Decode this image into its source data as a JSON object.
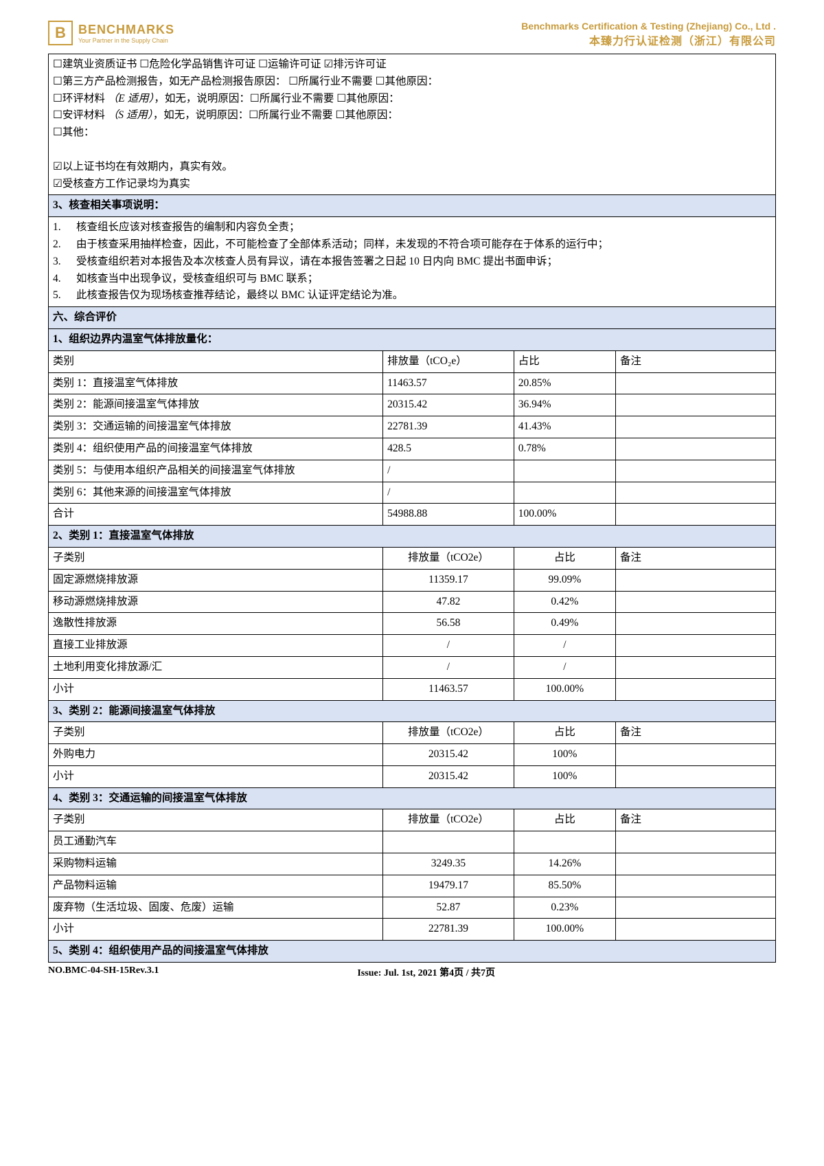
{
  "header": {
    "logo_letter": "B",
    "brand": "BENCHMARKS",
    "tagline": "Your Partner in the Supply Chain",
    "company_en": "Benchmarks Certification & Testing (Zhejiang) Co., Ltd .",
    "company_cn": "本臻力行认证检测（浙江）有限公司"
  },
  "certs_box": {
    "lines": [
      [
        {
          "c": "u",
          "t": "建筑业资质证书"
        },
        {
          "c": "u",
          "t": "危险化学品销售许可证"
        },
        {
          "c": "u",
          "t": "运输许可证"
        },
        {
          "c": "c",
          "t": "排污许可证"
        }
      ],
      [
        {
          "c": "u",
          "t": "第三方产品检测报告，如无产品检测报告原因："
        },
        {
          "c": "u",
          "t": "所属行业不需要"
        },
        {
          "c": "u",
          "t": "其他原因："
        }
      ],
      [
        {
          "c": "u",
          "t": "环评材料"
        },
        {
          "it": "（E 适用）"
        },
        {
          "plain": "，如无，说明原因："
        },
        {
          "c": "u",
          "t": "所属行业不需要"
        },
        {
          "c": "u",
          "t": "其他原因："
        }
      ],
      [
        {
          "c": "u",
          "t": "安评材料"
        },
        {
          "it": "（S 适用）"
        },
        {
          "plain": "，如无，说明原因："
        },
        {
          "c": "u",
          "t": "所属行业不需要"
        },
        {
          "c": "u",
          "t": "其他原因："
        }
      ],
      [
        {
          "c": "u",
          "t": "其他："
        }
      ]
    ],
    "footer_lines": [
      {
        "c": "c",
        "t": "以上证书均在有效期内，真实有效。"
      },
      {
        "c": "c",
        "t": "受核查方工作记录均为真实"
      }
    ]
  },
  "sec3_title": "3、核查相关事项说明：",
  "sec3_items": [
    {
      "n": "1.",
      "t": "核查组长应该对核查报告的编制和内容负全责；"
    },
    {
      "n": "2.",
      "t": "由于核查采用抽样检查，因此，不可能检查了全部体系活动；同样，未发现的不符合项可能存在于体系的运行中；"
    },
    {
      "n": "3.",
      "t": "受核查组织若对本报告及本次核查人员有异议，请在本报告签署之日起 10 日内向 BMC 提出书面申诉；"
    },
    {
      "n": "4.",
      "t": "如核查当中出现争议，受核查组织可与 BMC 联系；"
    },
    {
      "n": "5.",
      "t": "此核查报告仅为现场核查推荐结论，最终以 BMC 认证评定结论为准。"
    }
  ],
  "sec6_title": "六、综合评价",
  "emissions": {
    "title": "1、组织边界内温室气体排放量化：",
    "col_category": "类别",
    "col_emission": "排放量（tCO₂e）",
    "col_ratio": "占比",
    "col_note": "备注",
    "rows": [
      {
        "cat": "类别 1：直接温室气体排放",
        "e": "11463.57",
        "r": "20.85%",
        "n": ""
      },
      {
        "cat": "类别 2：能源间接温室气体排放",
        "e": "20315.42",
        "r": "36.94%",
        "n": ""
      },
      {
        "cat": "类别 3：交通运输的间接温室气体排放",
        "e": "22781.39",
        "r": "41.43%",
        "n": ""
      },
      {
        "cat": "类别 4：组织使用产品的间接温室气体排放",
        "e": "428.5",
        "r": "0.78%",
        "n": ""
      },
      {
        "cat": "类别 5：与使用本组织产品相关的间接温室气体排放",
        "e": "/",
        "r": "",
        "n": ""
      },
      {
        "cat": "类别 6：其他来源的间接温室气体排放",
        "e": "/",
        "r": "",
        "n": ""
      }
    ],
    "total_label": "合计",
    "total_e": "54988.88",
    "total_r": "100.00%"
  },
  "cat1": {
    "title": "2、类别 1：直接温室气体排放",
    "col_sub": "子类别",
    "col_e": "排放量（tCO2e）",
    "col_r": "占比",
    "col_n": "备注",
    "rows": [
      {
        "s": "固定源燃烧排放源",
        "e": "11359.17",
        "r": "99.09%",
        "n": ""
      },
      {
        "s": "移动源燃烧排放源",
        "e": "47.82",
        "r": "0.42%",
        "n": ""
      },
      {
        "s": "逸散性排放源",
        "e": "56.58",
        "r": "0.49%",
        "n": ""
      },
      {
        "s": "直接工业排放源",
        "e": "/",
        "r": "/",
        "n": ""
      },
      {
        "s": "土地利用变化排放源/汇",
        "e": "/",
        "r": "/",
        "n": ""
      }
    ],
    "subtotal_label": "小计",
    "subtotal_e": "11463.57",
    "subtotal_r": "100.00%"
  },
  "cat2": {
    "title": "3、类别 2：能源间接温室气体排放",
    "col_sub": "子类别",
    "col_e": "排放量（tCO2e）",
    "col_r": "占比",
    "col_n": "备注",
    "rows": [
      {
        "s": "外购电力",
        "e": "20315.42",
        "r": "100%",
        "n": ""
      }
    ],
    "subtotal_label": "小计",
    "subtotal_e": "20315.42",
    "subtotal_r": "100%"
  },
  "cat3": {
    "title": "4、类别 3：交通运输的间接温室气体排放",
    "col_sub": "子类别",
    "col_e": "排放量（tCO2e）",
    "col_r": "占比",
    "col_n": "备注",
    "rows": [
      {
        "s": "员工通勤汽车",
        "e": "",
        "r": "",
        "n": ""
      },
      {
        "s": "采购物料运输",
        "e": "3249.35",
        "r": "14.26%",
        "n": ""
      },
      {
        "s": "产品物料运输",
        "e": "19479.17",
        "r": "85.50%",
        "n": ""
      },
      {
        "s": "废弃物（生活垃圾、固废、危废）运输",
        "e": "52.87",
        "r": "0.23%",
        "n": ""
      }
    ],
    "subtotal_label": "小计",
    "subtotal_e": "22781.39",
    "subtotal_r": "100.00%"
  },
  "cat4_title": "5、类别 4：组织使用产品的间接温室气体排放",
  "footer": {
    "left": "NO.BMC-04-SH-15Rev.3.1",
    "center": "Issue: Jul. 1st, 2021 第4页  /  共7页"
  },
  "colors": {
    "accent": "#c89b3c",
    "section_bg": "#d9e2f3",
    "border": "#000000"
  }
}
